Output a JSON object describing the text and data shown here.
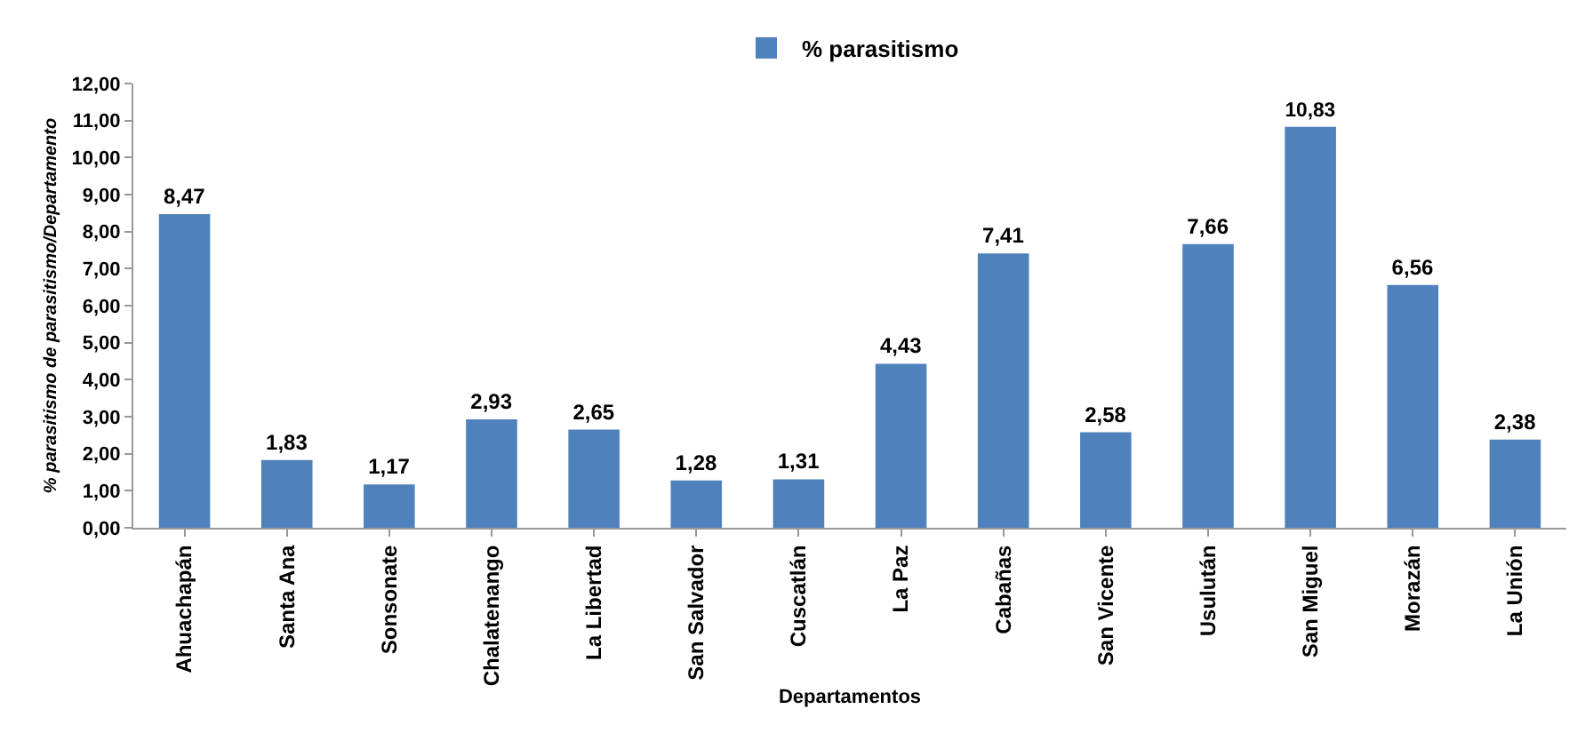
{
  "chart_data": {
    "type": "bar",
    "xlabel": "Departamentos",
    "ylabel": "% parasitismo de parasitismo/Departamento",
    "categories": [
      "Ahuachapán",
      "Santa Ana",
      "Sonsonate",
      "Chalatenango",
      "La Libertad",
      "San Salvador",
      "Cuscatlán",
      "La Paz",
      "Cabañas",
      "San Vicente",
      "Usulután",
      "San Miguel",
      "Morazán",
      "La Unión"
    ],
    "series": [
      {
        "name": "% parasitismo",
        "color": "#4f81bd",
        "values": [
          8.47,
          1.83,
          1.17,
          2.93,
          2.65,
          1.28,
          1.31,
          4.43,
          7.41,
          2.58,
          7.66,
          10.83,
          6.56,
          2.38
        ],
        "value_labels": [
          "8,47",
          "1,83",
          "1,17",
          "2,93",
          "2,65",
          "1,28",
          "1,31",
          "4,43",
          "7,41",
          "2,58",
          "7,66",
          "10,83",
          "6,56",
          "2,38"
        ]
      }
    ],
    "ylim": [
      0,
      12
    ],
    "yticks": [
      {
        "value": 0,
        "label": "0,00"
      },
      {
        "value": 1,
        "label": "1,00"
      },
      {
        "value": 2,
        "label": "2,00"
      },
      {
        "value": 3,
        "label": "3,00"
      },
      {
        "value": 4,
        "label": "4,00"
      },
      {
        "value": 5,
        "label": "5,00"
      },
      {
        "value": 6,
        "label": "6,00"
      },
      {
        "value": 7,
        "label": "7,00"
      },
      {
        "value": 8,
        "label": "8,00"
      },
      {
        "value": 9,
        "label": "9,00"
      },
      {
        "value": 10,
        "label": "10,00"
      },
      {
        "value": 11,
        "label": "11,00"
      },
      {
        "value": 12,
        "label": "12,00"
      }
    ],
    "grid": false,
    "legend": "top"
  }
}
